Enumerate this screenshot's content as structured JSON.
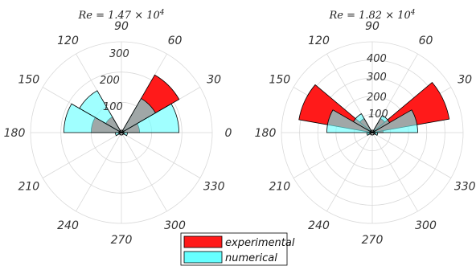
{
  "colors": {
    "experimental": "#ff1a1a",
    "numerical": "#66ffff",
    "overlap": "#5f9595",
    "grid": "#d9d9d9",
    "edge": "#000000"
  },
  "legend": {
    "experimental": "experimental",
    "numerical": "numerical"
  },
  "chart_data": [
    {
      "type": "polar-histogram",
      "title_prefix": "Re = 1.47 × 10",
      "title_exp": "4",
      "angle_ticks": [
        "0",
        "30",
        "60",
        "90",
        "120",
        "150",
        "180",
        "210",
        "240",
        "270",
        "300",
        "330"
      ],
      "r_ticks": [
        100,
        200,
        300
      ],
      "r_max": 300,
      "bin_width_deg": 30,
      "series": [
        {
          "name": "experimental",
          "values": [
            {
              "bin_center": 15,
              "r": 60
            },
            {
              "bin_center": 45,
              "r": 220
            },
            {
              "bin_center": 135,
              "r": 60
            },
            {
              "bin_center": 165,
              "r": 100
            },
            {
              "bin_center": 195,
              "r": 10
            },
            {
              "bin_center": 345,
              "r": 10
            }
          ]
        },
        {
          "name": "numerical",
          "values": [
            {
              "bin_center": 15,
              "r": 190
            },
            {
              "bin_center": 45,
              "r": 130
            },
            {
              "bin_center": 135,
              "r": 160
            },
            {
              "bin_center": 165,
              "r": 190
            },
            {
              "bin_center": 195,
              "r": 20
            },
            {
              "bin_center": 345,
              "r": 20
            }
          ]
        }
      ]
    },
    {
      "type": "polar-histogram",
      "title_prefix": "Re = 1.82 × 10",
      "title_exp": "4",
      "angle_ticks": [
        "0",
        "30",
        "60",
        "90",
        "120",
        "150",
        "180",
        "210",
        "240",
        "270",
        "300",
        "330"
      ],
      "r_ticks": [
        100,
        200,
        300,
        400
      ],
      "r_max": 500,
      "bin_width_deg": 30,
      "series": [
        {
          "name": "experimental",
          "values": [
            {
              "bin_center": 15,
              "r": 60
            },
            {
              "bin_center": 45,
              "r": 90
            },
            {
              "bin_center": 25,
              "r": 430
            },
            {
              "bin_center": 135,
              "r": 90
            },
            {
              "bin_center": 155,
              "r": 410
            },
            {
              "bin_center": 195,
              "r": 20
            },
            {
              "bin_center": 345,
              "r": 20
            }
          ]
        },
        {
          "name": "numerical",
          "values": [
            {
              "bin_center": 15,
              "r": 250
            },
            {
              "bin_center": 45,
              "r": 110
            },
            {
              "bin_center": 135,
              "r": 120
            },
            {
              "bin_center": 165,
              "r": 250
            },
            {
              "bin_center": 195,
              "r": 30
            },
            {
              "bin_center": 345,
              "r": 30
            }
          ]
        }
      ]
    }
  ]
}
